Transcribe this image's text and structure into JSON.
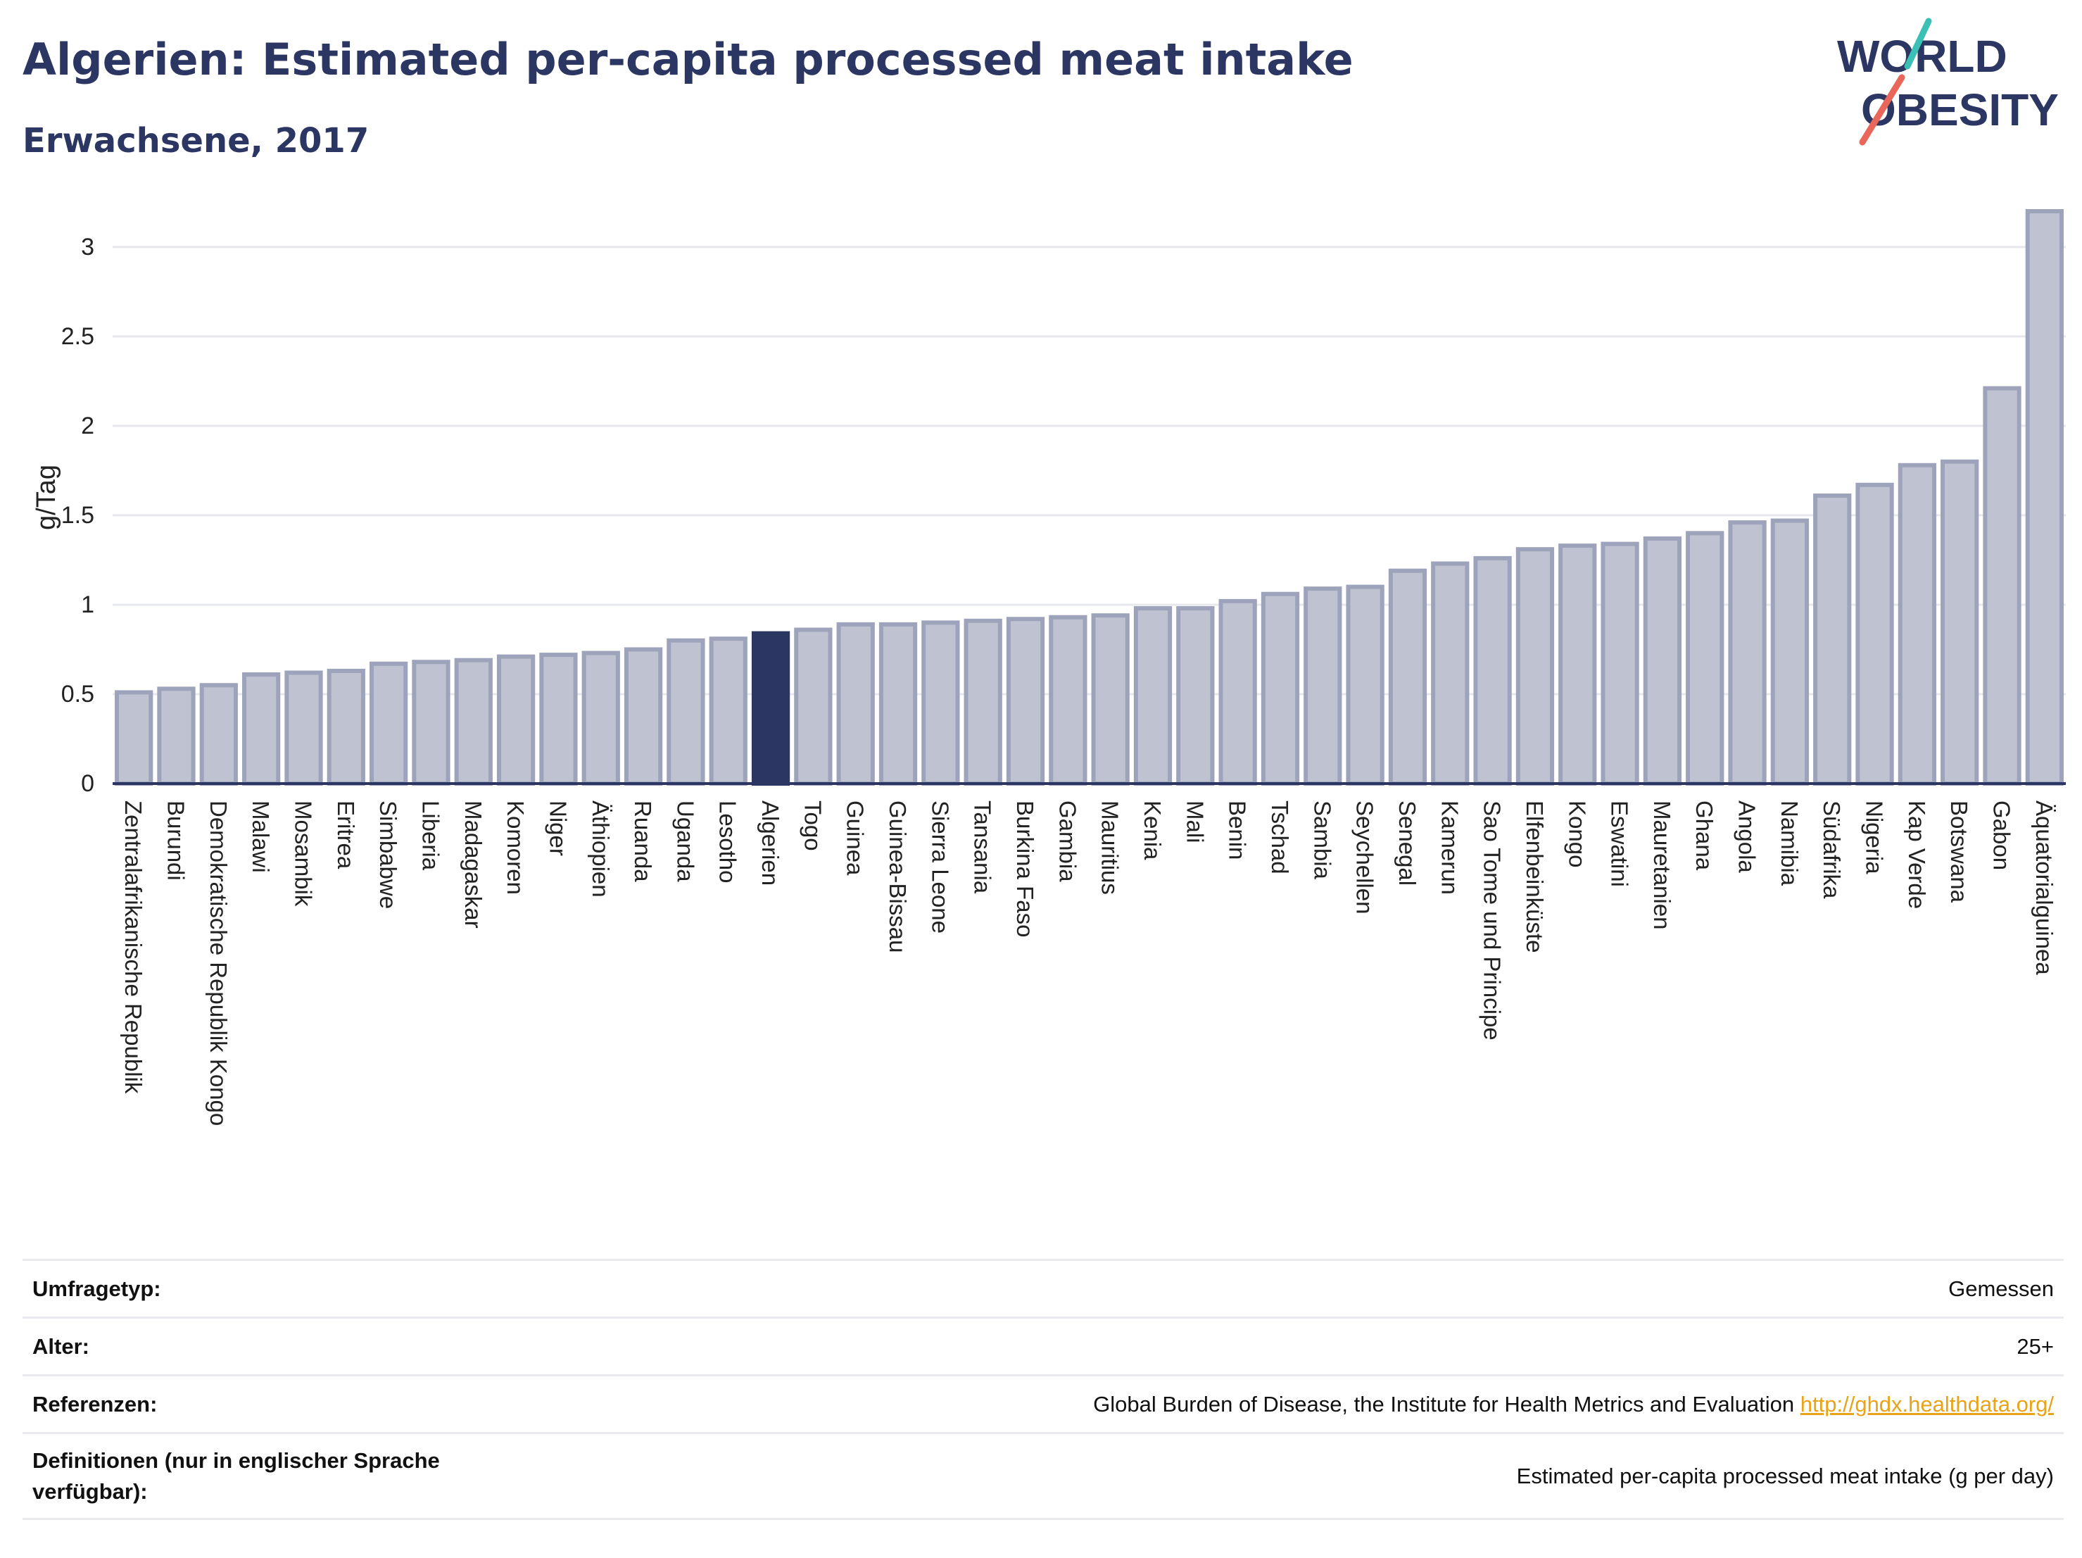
{
  "header": {
    "title": "Algerien: Estimated per-capita processed meat intake",
    "subtitle": "Erwachsene, 2017"
  },
  "logo": {
    "line1": "WORLD",
    "line2": "OBESITY",
    "text_color": "#2b3663",
    "slash_color_top": "#3cbfb4",
    "slash_color_bottom": "#e8675a"
  },
  "chart_data": {
    "type": "bar",
    "ylabel": "g/Tag",
    "xlabel": "",
    "ylim": [
      0,
      3.2
    ],
    "yticks": [
      0,
      0.5,
      1,
      1.5,
      2,
      2.5,
      3
    ],
    "ytick_labels": [
      "0",
      "0.5",
      "1",
      "1.5",
      "2",
      "2.5",
      "3"
    ],
    "grid": true,
    "highlight": "Algerien",
    "colors": {
      "bar": "#bfc3d1",
      "bar_edge": "#9da3ba",
      "highlight": "#2b3663",
      "grid": "#e6e8ee",
      "axis_text": "#222222"
    },
    "categories": [
      "Zentralafrikanische Republik",
      "Burundi",
      "Demokratische Republik Kongo",
      "Malawi",
      "Mosambik",
      "Eritrea",
      "Simbabwe",
      "Liberia",
      "Madagaskar",
      "Komoren",
      "Niger",
      "Äthiopien",
      "Ruanda",
      "Uganda",
      "Lesotho",
      "Algerien",
      "Togo",
      "Guinea",
      "Guinea-Bissau",
      "Sierra Leone",
      "Tansania",
      "Burkina Faso",
      "Gambia",
      "Mauritius",
      "Kenia",
      "Mali",
      "Benin",
      "Tschad",
      "Sambia",
      "Seychellen",
      "Senegal",
      "Kamerun",
      "Sao Tome und Principe",
      "Elfenbeinküste",
      "Kongo",
      "Eswatini",
      "Mauretanien",
      "Ghana",
      "Angola",
      "Namibia",
      "Südafrika",
      "Nigeria",
      "Kap Verde",
      "Botswana",
      "Gabon",
      "Äquatorialguinea"
    ],
    "values": [
      0.51,
      0.53,
      0.55,
      0.61,
      0.62,
      0.63,
      0.67,
      0.68,
      0.69,
      0.71,
      0.72,
      0.73,
      0.75,
      0.8,
      0.81,
      0.84,
      0.86,
      0.89,
      0.89,
      0.9,
      0.91,
      0.92,
      0.93,
      0.94,
      0.98,
      0.98,
      1.02,
      1.06,
      1.09,
      1.1,
      1.19,
      1.23,
      1.26,
      1.31,
      1.33,
      1.34,
      1.37,
      1.4,
      1.46,
      1.47,
      1.61,
      1.67,
      1.78,
      1.8,
      2.21,
      3.2
    ]
  },
  "info": {
    "survey_type_label": "Umfragetyp:",
    "survey_type_value": "Gemessen",
    "age_label": "Alter:",
    "age_value": "25+",
    "references_label": "Referenzen:",
    "references_text": "Global Burden of Disease, the Institute for Health Metrics and Evaluation",
    "references_link": "http://ghdx.healthdata.org/",
    "definitions_label": "Definitionen (nur in englischer Sprache verfügbar):",
    "definitions_value": "Estimated per-capita processed meat intake (g per day)"
  }
}
